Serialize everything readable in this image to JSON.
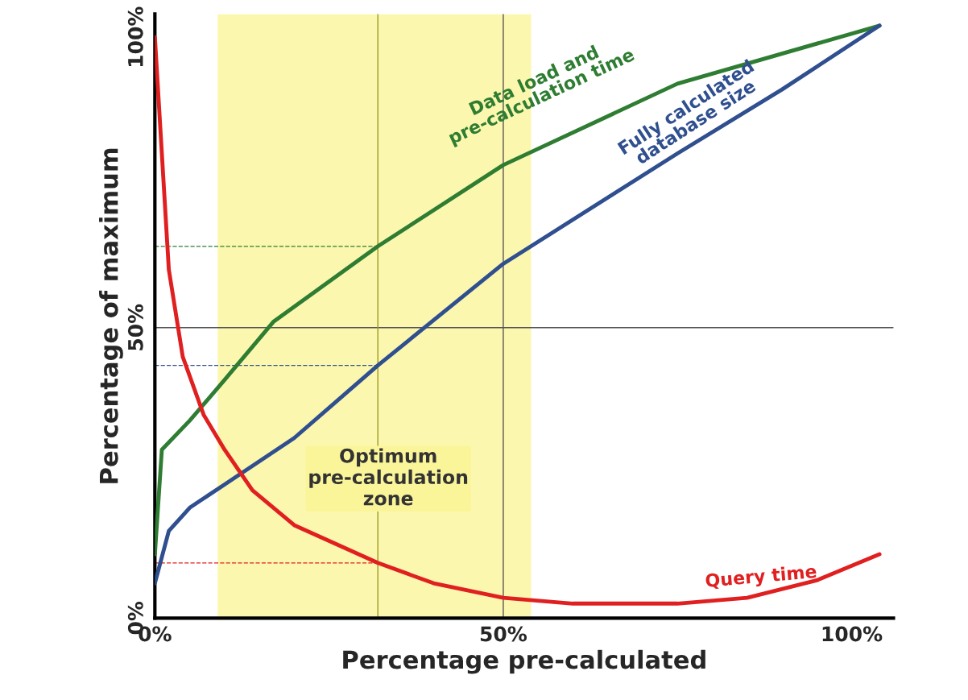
{
  "chart_data": {
    "type": "line",
    "xlabel": "Percentage pre-calculated",
    "ylabel": "Percentage of maximum",
    "xlim": [
      0,
      106
    ],
    "ylim": [
      0,
      104
    ],
    "xticks": [
      {
        "value": 0,
        "label": "0%"
      },
      {
        "value": 50,
        "label": "50%"
      },
      {
        "value": 100,
        "label": "100%"
      }
    ],
    "yticks": [
      {
        "value": 0,
        "label": "0%"
      },
      {
        "value": 50,
        "label": "50%"
      },
      {
        "value": 100,
        "label": "100%"
      }
    ],
    "grid": false,
    "legend": false,
    "marker": "none",
    "series": [
      {
        "name": "Data load and\npre-calculation time",
        "color": "#2e7d32",
        "x": [
          0,
          1,
          5,
          10,
          17,
          32,
          50,
          75,
          104
        ],
        "values": [
          11,
          29,
          34,
          41,
          51,
          64,
          78,
          92,
          102
        ]
      },
      {
        "name": "Fully calculated\ndatabase size",
        "color": "#2f4f8f",
        "x": [
          0,
          2,
          5,
          10,
          20,
          32,
          50,
          75,
          90,
          104
        ],
        "values": [
          6,
          15,
          19,
          23,
          31,
          43.5,
          61,
          80,
          91,
          102
        ]
      },
      {
        "name": "Query time",
        "color": "#e02020",
        "x": [
          0,
          1,
          2,
          4,
          7,
          10,
          14,
          20,
          32,
          40,
          50,
          60,
          75,
          85,
          95,
          104
        ],
        "values": [
          100,
          80,
          60,
          45,
          35,
          29,
          22,
          16,
          9.5,
          6,
          3.5,
          2.5,
          2.5,
          3.5,
          6.5,
          11
        ]
      },
      {
        "color": "#2e7d32",
        "line_style": "dashed",
        "x": [
          0,
          32
        ],
        "values": [
          64,
          64
        ]
      },
      {
        "color": "#2f4f8f",
        "line_style": "dashed",
        "x": [
          0,
          32
        ],
        "values": [
          43.5,
          43.5
        ]
      },
      {
        "color": "#e02020",
        "line_style": "dashed",
        "x": [
          0,
          32
        ],
        "values": [
          9.5,
          9.5
        ]
      }
    ],
    "ref_lines": [
      {
        "axis": "x",
        "value": 50,
        "color": "#555555"
      },
      {
        "axis": "y",
        "value": 50,
        "color": "#555555"
      },
      {
        "axis": "x",
        "value": 32,
        "color": "#9a9a20"
      }
    ],
    "bands": [
      {
        "axis": "x",
        "from": 9,
        "to": 54,
        "label": "Optimum\npre-calculation\nzone",
        "color": "#fbf59a"
      }
    ]
  }
}
